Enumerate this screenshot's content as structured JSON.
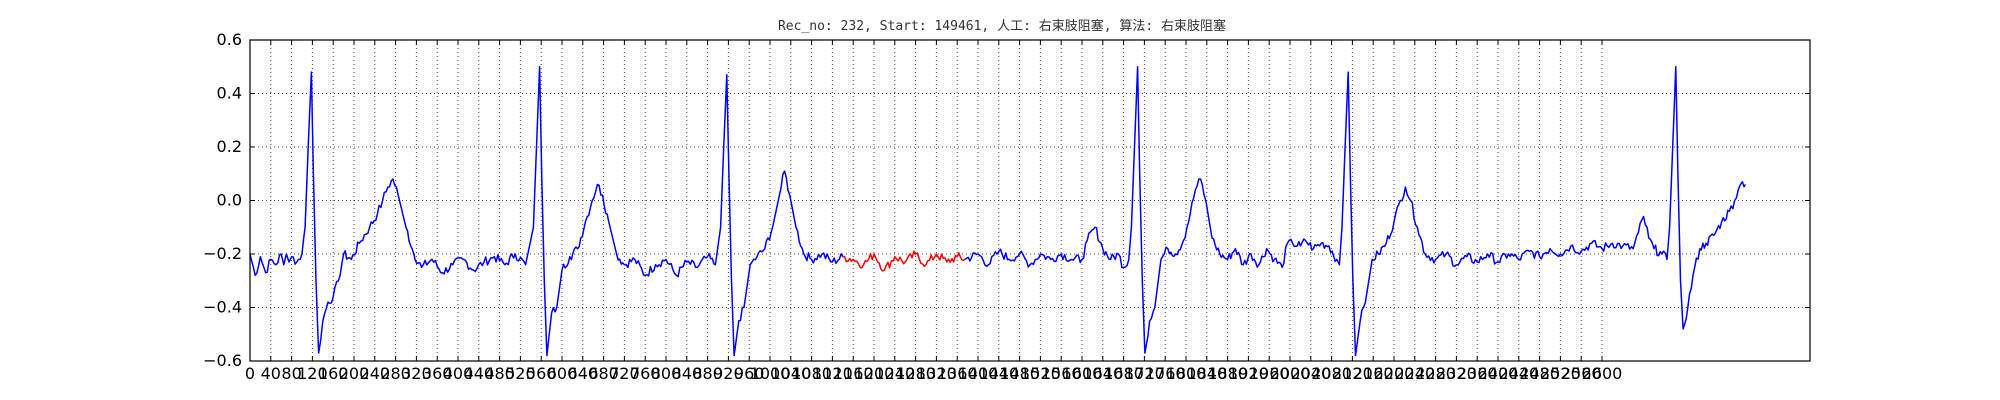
{
  "chart_data": {
    "type": "line",
    "title": "Rec_no: 232, Start: 149461, 人工: 右束肢阻塞, 算法: 右束肢阻塞",
    "xlabel": "",
    "ylabel": "",
    "xlim": [
      0,
      3000
    ],
    "ylim": [
      -0.6,
      0.6
    ],
    "grid": true,
    "x_tick_labels": [
      "0",
      "40",
      "80",
      "120",
      "160",
      "200",
      "240",
      "280",
      "320",
      "360",
      "400",
      "440",
      "480",
      "520",
      "560",
      "600",
      "640",
      "680",
      "720",
      "760",
      "800",
      "840",
      "880",
      "920",
      "960",
      "1000",
      "1040",
      "1080",
      "1120",
      "1160",
      "1200",
      "1240",
      "1280",
      "1320",
      "1360",
      "1400",
      "1440",
      "1480",
      "1520",
      "1560",
      "1600",
      "1640",
      "1680",
      "1720",
      "1760",
      "1800",
      "1840",
      "1880",
      "1920",
      "1960",
      "2000",
      "2040",
      "2080",
      "2120",
      "2160",
      "2200",
      "2240",
      "2280",
      "2320",
      "2360",
      "2400",
      "2440",
      "2480",
      "2520",
      "2560",
      "2600"
    ],
    "y_tick_labels": [
      "0.6",
      "0.4",
      "0.2",
      "0.0",
      "−0.2",
      "−0.4",
      "−0.6"
    ],
    "y_ticks": [
      0.6,
      0.4,
      0.2,
      0.0,
      -0.2,
      -0.4,
      -0.6
    ],
    "colors": {
      "normal": "#0000ff",
      "highlight": "#ff0000"
    },
    "highlight_range": [
      1160,
      1375
    ],
    "series_points": [
      [
        0,
        -0.2
      ],
      [
        10,
        -0.28
      ],
      [
        20,
        -0.21
      ],
      [
        30,
        -0.27
      ],
      [
        40,
        -0.22
      ],
      [
        50,
        -0.24
      ],
      [
        60,
        -0.2
      ],
      [
        65,
        -0.24
      ],
      [
        70,
        -0.2
      ],
      [
        75,
        -0.23
      ],
      [
        80,
        -0.21
      ],
      [
        90,
        -0.23
      ],
      [
        100,
        -0.2
      ],
      [
        106,
        -0.1
      ],
      [
        112,
        0.2
      ],
      [
        118,
        0.48
      ],
      [
        122,
        0.1
      ],
      [
        127,
        -0.3
      ],
      [
        132,
        -0.57
      ],
      [
        140,
        -0.45
      ],
      [
        150,
        -0.38
      ],
      [
        160,
        -0.36
      ],
      [
        170,
        -0.3
      ],
      [
        180,
        -0.2
      ],
      [
        195,
        -0.22
      ],
      [
        210,
        -0.16
      ],
      [
        230,
        -0.1
      ],
      [
        245,
        -0.05
      ],
      [
        255,
        0.0
      ],
      [
        265,
        0.05
      ],
      [
        275,
        0.08
      ],
      [
        285,
        0.02
      ],
      [
        300,
        -0.1
      ],
      [
        315,
        -0.2
      ],
      [
        330,
        -0.25
      ],
      [
        350,
        -0.22
      ],
      [
        370,
        -0.27
      ],
      [
        390,
        -0.24
      ],
      [
        410,
        -0.22
      ],
      [
        430,
        -0.26
      ],
      [
        450,
        -0.23
      ],
      [
        470,
        -0.21
      ],
      [
        490,
        -0.24
      ],
      [
        510,
        -0.2
      ],
      [
        530,
        -0.24
      ],
      [
        545,
        -0.1
      ],
      [
        551,
        0.2
      ],
      [
        557,
        0.5
      ],
      [
        561,
        0.1
      ],
      [
        566,
        -0.3
      ],
      [
        571,
        -0.58
      ],
      [
        580,
        -0.42
      ],
      [
        590,
        -0.4
      ],
      [
        600,
        -0.26
      ],
      [
        615,
        -0.21
      ],
      [
        630,
        -0.18
      ],
      [
        645,
        -0.08
      ],
      [
        658,
        0.0
      ],
      [
        668,
        0.06
      ],
      [
        678,
        0.02
      ],
      [
        690,
        -0.08
      ],
      [
        705,
        -0.2
      ],
      [
        720,
        -0.24
      ],
      [
        740,
        -0.22
      ],
      [
        760,
        -0.28
      ],
      [
        780,
        -0.24
      ],
      [
        800,
        -0.22
      ],
      [
        820,
        -0.28
      ],
      [
        840,
        -0.23
      ],
      [
        860,
        -0.25
      ],
      [
        880,
        -0.21
      ],
      [
        895,
        -0.24
      ],
      [
        905,
        -0.1
      ],
      [
        911,
        0.2
      ],
      [
        917,
        0.47
      ],
      [
        921,
        0.1
      ],
      [
        926,
        -0.3
      ],
      [
        931,
        -0.58
      ],
      [
        940,
        -0.45
      ],
      [
        950,
        -0.4
      ],
      [
        962,
        -0.24
      ],
      [
        975,
        -0.21
      ],
      [
        990,
        -0.18
      ],
      [
        1005,
        -0.1
      ],
      [
        1018,
        0.02
      ],
      [
        1028,
        0.11
      ],
      [
        1038,
        0.02
      ],
      [
        1050,
        -0.1
      ],
      [
        1065,
        -0.2
      ],
      [
        1080,
        -0.22
      ],
      [
        1100,
        -0.2
      ],
      [
        1120,
        -0.23
      ],
      [
        1140,
        -0.21
      ],
      [
        1160,
        -0.22
      ],
      [
        1180,
        -0.24
      ],
      [
        1200,
        -0.2
      ],
      [
        1220,
        -0.26
      ],
      [
        1240,
        -0.21
      ],
      [
        1260,
        -0.23
      ],
      [
        1280,
        -0.2
      ],
      [
        1300,
        -0.24
      ],
      [
        1320,
        -0.2
      ],
      [
        1340,
        -0.23
      ],
      [
        1360,
        -0.21
      ],
      [
        1375,
        -0.22
      ],
      [
        1400,
        -0.2
      ],
      [
        1420,
        -0.24
      ],
      [
        1440,
        -0.19
      ],
      [
        1460,
        -0.22
      ],
      [
        1480,
        -0.2
      ],
      [
        1500,
        -0.24
      ],
      [
        1520,
        -0.2
      ],
      [
        1540,
        -0.22
      ],
      [
        1560,
        -0.2
      ],
      [
        1580,
        -0.22
      ],
      [
        1600,
        -0.22
      ],
      [
        1610,
        -0.15
      ],
      [
        1625,
        -0.1
      ],
      [
        1640,
        -0.18
      ],
      [
        1655,
        -0.22
      ],
      [
        1670,
        -0.2
      ],
      [
        1680,
        -0.25
      ],
      [
        1690,
        -0.22
      ],
      [
        1695,
        -0.1
      ],
      [
        1701,
        0.2
      ],
      [
        1707,
        0.5
      ],
      [
        1711,
        0.1
      ],
      [
        1716,
        -0.3
      ],
      [
        1721,
        -0.57
      ],
      [
        1730,
        -0.45
      ],
      [
        1740,
        -0.4
      ],
      [
        1752,
        -0.22
      ],
      [
        1765,
        -0.18
      ],
      [
        1780,
        -0.2
      ],
      [
        1795,
        -0.15
      ],
      [
        1808,
        -0.05
      ],
      [
        1818,
        0.04
      ],
      [
        1828,
        0.08
      ],
      [
        1838,
        0.0
      ],
      [
        1850,
        -0.14
      ],
      [
        1865,
        -0.2
      ],
      [
        1880,
        -0.22
      ],
      [
        1895,
        -0.18
      ],
      [
        1910,
        -0.24
      ],
      [
        1925,
        -0.2
      ],
      [
        1940,
        -0.24
      ],
      [
        1955,
        -0.18
      ],
      [
        1970,
        -0.22
      ],
      [
        1985,
        -0.25
      ],
      [
        1995,
        -0.16
      ],
      [
        2005,
        -0.16
      ],
      [
        2020,
        -0.17
      ],
      [
        2030,
        -0.15
      ],
      [
        2045,
        -0.18
      ],
      [
        2060,
        -0.16
      ],
      [
        2075,
        -0.17
      ],
      [
        2090,
        -0.22
      ],
      [
        2095,
        -0.24
      ],
      [
        2100,
        -0.1
      ],
      [
        2106,
        0.2
      ],
      [
        2112,
        0.48
      ],
      [
        2116,
        0.1
      ],
      [
        2121,
        -0.3
      ],
      [
        2126,
        -0.58
      ],
      [
        2135,
        -0.45
      ],
      [
        2145,
        -0.38
      ],
      [
        2158,
        -0.22
      ],
      [
        2170,
        -0.2
      ],
      [
        2185,
        -0.16
      ],
      [
        2200,
        -0.08
      ],
      [
        2212,
        0.0
      ],
      [
        2222,
        0.05
      ],
      [
        2232,
        0.0
      ],
      [
        2245,
        -0.1
      ],
      [
        2260,
        -0.2
      ],
      [
        2280,
        -0.22
      ],
      [
        2300,
        -0.2
      ],
      [
        2320,
        -0.24
      ],
      [
        2340,
        -0.21
      ],
      [
        2360,
        -0.23
      ],
      [
        2380,
        -0.2
      ],
      [
        2400,
        -0.23
      ],
      [
        2420,
        -0.2
      ],
      [
        2440,
        -0.22
      ],
      [
        2460,
        -0.19
      ],
      [
        2480,
        -0.21
      ],
      [
        2500,
        -0.18
      ],
      [
        2520,
        -0.2
      ],
      [
        2540,
        -0.17
      ],
      [
        2560,
        -0.19
      ],
      [
        2580,
        -0.16
      ],
      [
        2600,
        -0.18
      ],
      [
        2620,
        -0.16
      ],
      [
        2640,
        -0.17
      ],
      [
        2660,
        -0.18
      ],
      [
        2670,
        -0.12
      ],
      [
        2680,
        -0.06
      ],
      [
        2690,
        -0.14
      ],
      [
        2700,
        -0.18
      ],
      [
        2715,
        -0.2
      ],
      [
        2725,
        -0.22
      ],
      [
        2730,
        -0.1
      ],
      [
        2736,
        0.2
      ],
      [
        2742,
        0.5
      ],
      [
        2746,
        0.1
      ],
      [
        2751,
        -0.3
      ],
      [
        2756,
        -0.48
      ],
      [
        2765,
        -0.4
      ],
      [
        2775,
        -0.28
      ],
      [
        2788,
        -0.18
      ],
      [
        2800,
        -0.16
      ],
      [
        2815,
        -0.13
      ],
      [
        2830,
        -0.08
      ],
      [
        2845,
        -0.04
      ],
      [
        2855,
        0.0
      ],
      [
        2862,
        0.04
      ],
      [
        2870,
        0.07
      ],
      [
        2876,
        0.06
      ]
    ]
  }
}
